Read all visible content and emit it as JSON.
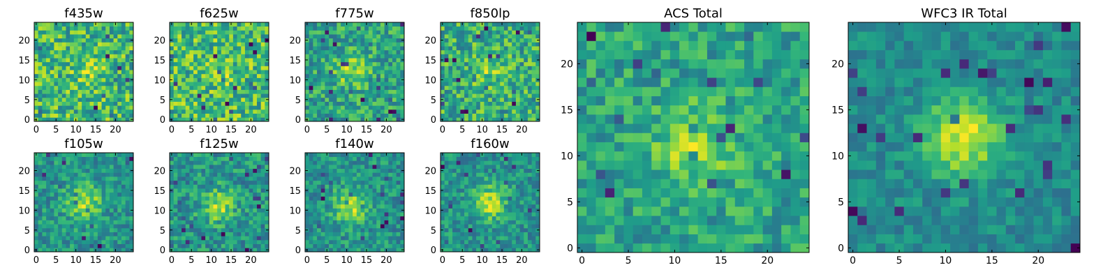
{
  "figure": {
    "caption": ""
  },
  "chart_data": [
    {
      "type": "heatmap",
      "title": "f435w",
      "xlabel": "",
      "ylabel": "",
      "grid": false,
      "xticks": [
        0,
        5,
        10,
        15,
        20
      ],
      "yticks": [
        0,
        5,
        10,
        15,
        20
      ],
      "xlim": [
        -0.5,
        24.5
      ],
      "ylim": [
        -0.5,
        24.5
      ],
      "size": 25,
      "seed": 435,
      "blob": {
        "center": [
          13,
          11
        ],
        "strength": 0.15
      },
      "noise": 0.55,
      "colormap": "viridis"
    },
    {
      "type": "heatmap",
      "title": "f625w",
      "xlabel": "",
      "ylabel": "",
      "grid": false,
      "xticks": [
        0,
        5,
        10,
        15,
        20
      ],
      "yticks": [
        0,
        5,
        10,
        15,
        20
      ],
      "xlim": [
        -0.5,
        24.5
      ],
      "ylim": [
        -0.5,
        24.5
      ],
      "size": 25,
      "seed": 625,
      "blob": {
        "center": [
          12,
          12
        ],
        "strength": 0.1
      },
      "noise": 0.55,
      "colormap": "viridis"
    },
    {
      "type": "heatmap",
      "title": "f775w",
      "xlabel": "",
      "ylabel": "",
      "grid": false,
      "xticks": [
        0,
        5,
        10,
        15,
        20
      ],
      "yticks": [
        0,
        5,
        10,
        15,
        20
      ],
      "xlim": [
        -0.5,
        24.5
      ],
      "ylim": [
        -0.5,
        24.5
      ],
      "size": 25,
      "seed": 775,
      "blob": {
        "center": [
          11,
          12
        ],
        "strength": 0.35
      },
      "noise": 0.5,
      "colormap": "viridis"
    },
    {
      "type": "heatmap",
      "title": "f850lp",
      "xlabel": "",
      "ylabel": "",
      "grid": false,
      "xticks": [
        0,
        5,
        10,
        15,
        20
      ],
      "yticks": [
        0,
        5,
        10,
        15,
        20
      ],
      "xlim": [
        -0.5,
        24.5
      ],
      "ylim": [
        -0.5,
        24.5
      ],
      "size": 25,
      "seed": 850,
      "blob": {
        "center": [
          12,
          12
        ],
        "strength": 0.2
      },
      "noise": 0.55,
      "colormap": "viridis"
    },
    {
      "type": "heatmap",
      "title": "ACS Total",
      "xlabel": "",
      "ylabel": "",
      "grid": false,
      "xticks": [
        0,
        5,
        10,
        15,
        20
      ],
      "yticks": [
        0,
        5,
        10,
        15,
        20
      ],
      "xlim": [
        -0.5,
        24.5
      ],
      "ylim": [
        -0.5,
        24.5
      ],
      "size": 25,
      "seed": 1001,
      "blob": {
        "center": [
          12,
          11
        ],
        "strength": 0.35
      },
      "noise": 0.4,
      "colormap": "viridis"
    },
    {
      "type": "heatmap",
      "title": "f105w",
      "xlabel": "",
      "ylabel": "",
      "grid": false,
      "xticks": [
        0,
        5,
        10,
        15,
        20
      ],
      "yticks": [
        0,
        5,
        10,
        15,
        20
      ],
      "xlim": [
        -0.5,
        24.5
      ],
      "ylim": [
        -0.5,
        24.5
      ],
      "size": 25,
      "seed": 105,
      "blob": {
        "center": [
          12,
          12
        ],
        "strength": 0.55
      },
      "noise": 0.45,
      "colormap": "viridis"
    },
    {
      "type": "heatmap",
      "title": "f125w",
      "xlabel": "",
      "ylabel": "",
      "grid": false,
      "xticks": [
        0,
        5,
        10,
        15,
        20
      ],
      "yticks": [
        0,
        5,
        10,
        15,
        20
      ],
      "xlim": [
        -0.5,
        24.5
      ],
      "ylim": [
        -0.5,
        24.5
      ],
      "size": 25,
      "seed": 125,
      "blob": {
        "center": [
          12,
          11
        ],
        "strength": 0.5
      },
      "noise": 0.5,
      "colormap": "viridis"
    },
    {
      "type": "heatmap",
      "title": "f140w",
      "xlabel": "",
      "ylabel": "",
      "grid": false,
      "xticks": [
        0,
        5,
        10,
        15,
        20
      ],
      "yticks": [
        0,
        5,
        10,
        15,
        20
      ],
      "xlim": [
        -0.5,
        24.5
      ],
      "ylim": [
        -0.5,
        24.5
      ],
      "size": 25,
      "seed": 140,
      "blob": {
        "center": [
          11,
          11
        ],
        "strength": 0.55
      },
      "noise": 0.45,
      "colormap": "viridis"
    },
    {
      "type": "heatmap",
      "title": "f160w",
      "xlabel": "",
      "ylabel": "",
      "grid": false,
      "xticks": [
        0,
        5,
        10,
        15,
        20
      ],
      "yticks": [
        0,
        5,
        10,
        15,
        20
      ],
      "xlim": [
        -0.5,
        24.5
      ],
      "ylim": [
        -0.5,
        24.5
      ],
      "size": 25,
      "seed": 160,
      "blob": {
        "center": [
          12,
          12
        ],
        "strength": 0.6
      },
      "noise": 0.45,
      "colormap": "viridis"
    },
    {
      "type": "heatmap",
      "title": "WFC3 IR Total",
      "xlabel": "",
      "ylabel": "",
      "grid": false,
      "xticks": [
        0,
        5,
        10,
        15,
        20
      ],
      "yticks": [
        0,
        5,
        10,
        15,
        20
      ],
      "xlim": [
        -0.5,
        24.5
      ],
      "ylim": [
        -0.5,
        24.5
      ],
      "size": 25,
      "seed": 2002,
      "blob": {
        "center": [
          12,
          12
        ],
        "strength": 0.7
      },
      "noise": 0.3,
      "colormap": "viridis"
    }
  ],
  "colors": {
    "viridis_stops": [
      "#440154",
      "#482878",
      "#3e4989",
      "#31688e",
      "#26828e",
      "#1f9e89",
      "#35b779",
      "#6ece58",
      "#b5de2b",
      "#fde725"
    ],
    "axis": "#000000",
    "text": "#000000"
  }
}
